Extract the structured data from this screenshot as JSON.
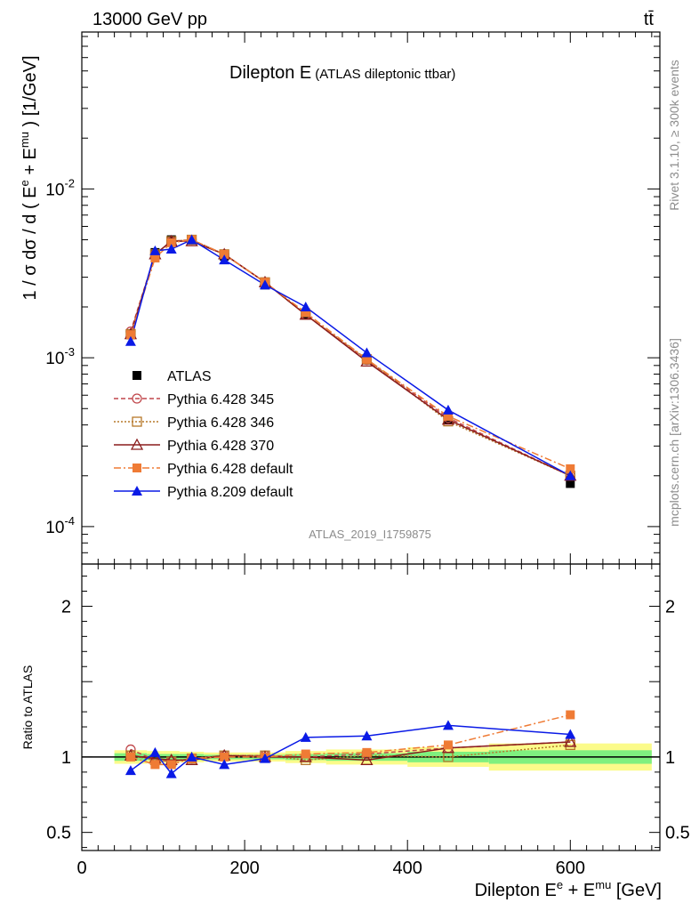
{
  "header": {
    "energy": "13000 GeV pp",
    "process": "tt̄"
  },
  "title": {
    "main": "Dilepton E",
    "sub": "(ATLAS dileptonic ttbar)"
  },
  "side": {
    "rivet": "Rivet 3.1.10, ≥ 300k events",
    "mcplots": "mcplots.cern.ch [arXiv:1306.3436]"
  },
  "watermark": "ATLAS_2019_I1759875",
  "colors": {
    "atlas": "#000000",
    "p345": "#c0474b",
    "p346": "#b6782a",
    "p370": "#8a1c1c",
    "pdef6": "#ef7b35",
    "p8": "#0a1ae6",
    "band_inner": "#7ff07f",
    "band_outer": "#fbfb8a"
  },
  "chart_data": [
    {
      "type": "line",
      "panel": "main",
      "title": "Dilepton E (ATLAS dileptonic ttbar)",
      "xlabel": "Dilepton E^e + E^mu [GeV]",
      "ylabel": "1 / σ dσ / d ( E^e + E^mu ) [1/GeV]",
      "yscale": "log",
      "xlim": [
        0,
        710
      ],
      "ylim": [
        6e-05,
        0.085
      ],
      "ytick_labels": [
        "10^-4",
        "10^-3",
        "10^-2"
      ],
      "ytick_values": [
        0.0001,
        0.001,
        0.01
      ],
      "legend_position": "center-left",
      "x": [
        60,
        90,
        110,
        135,
        175,
        225,
        275,
        350,
        450,
        600
      ],
      "series": [
        {
          "name": "ATLAS",
          "key": "atlas",
          "values": [
            0.00137,
            0.0042,
            0.005,
            0.005,
            0.004,
            0.0027,
            0.0018,
            0.00097,
            0.00043,
            0.00018
          ]
        },
        {
          "name": "Pythia 6.428 345",
          "key": "p345",
          "values": [
            0.00143,
            0.0041,
            0.0049,
            0.005,
            0.0041,
            0.0028,
            0.0018,
            0.00097,
            0.00044,
            0.0002
          ]
        },
        {
          "name": "Pythia 6.428 346",
          "key": "p346",
          "values": [
            0.00138,
            0.0041,
            0.0049,
            0.005,
            0.0041,
            0.0028,
            0.0018,
            0.00098,
            0.00042,
            0.0002
          ]
        },
        {
          "name": "Pythia 6.428 370",
          "key": "p370",
          "values": [
            0.00138,
            0.0041,
            0.0049,
            0.0049,
            0.0041,
            0.0028,
            0.0018,
            0.00095,
            0.00043,
            0.0002
          ]
        },
        {
          "name": "Pythia 6.428 default",
          "key": "pdef6",
          "values": [
            0.00137,
            0.0039,
            0.0048,
            0.005,
            0.0041,
            0.0028,
            0.00185,
            0.00098,
            0.00045,
            0.00022
          ]
        },
        {
          "name": "Pythia 8.209 default",
          "key": "p8",
          "values": [
            0.00125,
            0.0043,
            0.0044,
            0.005,
            0.0038,
            0.0027,
            0.002,
            0.00107,
            0.00049,
            0.0002
          ]
        }
      ]
    },
    {
      "type": "line",
      "panel": "ratio",
      "xlabel": "Dilepton E^e + E^mu [GeV]",
      "ylabel": "Ratio to ATLAS",
      "xlim": [
        0,
        710
      ],
      "ylim": [
        0.38,
        2.28
      ],
      "xtick_labels": [
        "0",
        "200",
        "400",
        "600"
      ],
      "xtick_values": [
        0,
        200,
        400,
        600
      ],
      "ytick_labels": [
        "0.5",
        "1",
        "2"
      ],
      "ytick_values": [
        0.5,
        1,
        2
      ],
      "x": [
        60,
        90,
        110,
        135,
        175,
        225,
        275,
        350,
        450,
        600
      ],
      "series": [
        {
          "name": "Pythia 6.428 345",
          "key": "p345",
          "values": [
            1.05,
            0.98,
            0.97,
            0.99,
            1.01,
            1.01,
            1.0,
            1.02,
            1.06,
            1.1
          ]
        },
        {
          "name": "Pythia 6.428 346",
          "key": "p346",
          "values": [
            1.01,
            0.98,
            0.97,
            0.99,
            1.01,
            1.01,
            0.98,
            1.01,
            1.0,
            1.08
          ]
        },
        {
          "name": "Pythia 6.428 370",
          "key": "p370",
          "values": [
            1.01,
            0.99,
            0.98,
            0.98,
            1.01,
            1.0,
            1.0,
            0.98,
            1.06,
            1.1
          ]
        },
        {
          "name": "Pythia 6.428 default",
          "key": "pdef6",
          "values": [
            1.0,
            0.95,
            0.95,
            0.99,
            1.0,
            1.0,
            1.02,
            1.03,
            1.08,
            1.28
          ]
        },
        {
          "name": "Pythia 8.209 default",
          "key": "p8",
          "values": [
            0.91,
            1.03,
            0.89,
            1.0,
            0.95,
            0.99,
            1.13,
            1.14,
            1.21,
            1.15
          ]
        }
      ],
      "band": {
        "x_edges": [
          40,
          80,
          100,
          120,
          150,
          200,
          250,
          300,
          400,
          500,
          700
        ],
        "inner": [
          0.025,
          0.02,
          0.02,
          0.02,
          0.015,
          0.015,
          0.02,
          0.025,
          0.035,
          0.045
        ],
        "outer": [
          0.045,
          0.04,
          0.04,
          0.035,
          0.03,
          0.03,
          0.04,
          0.05,
          0.065,
          0.09
        ]
      }
    }
  ]
}
